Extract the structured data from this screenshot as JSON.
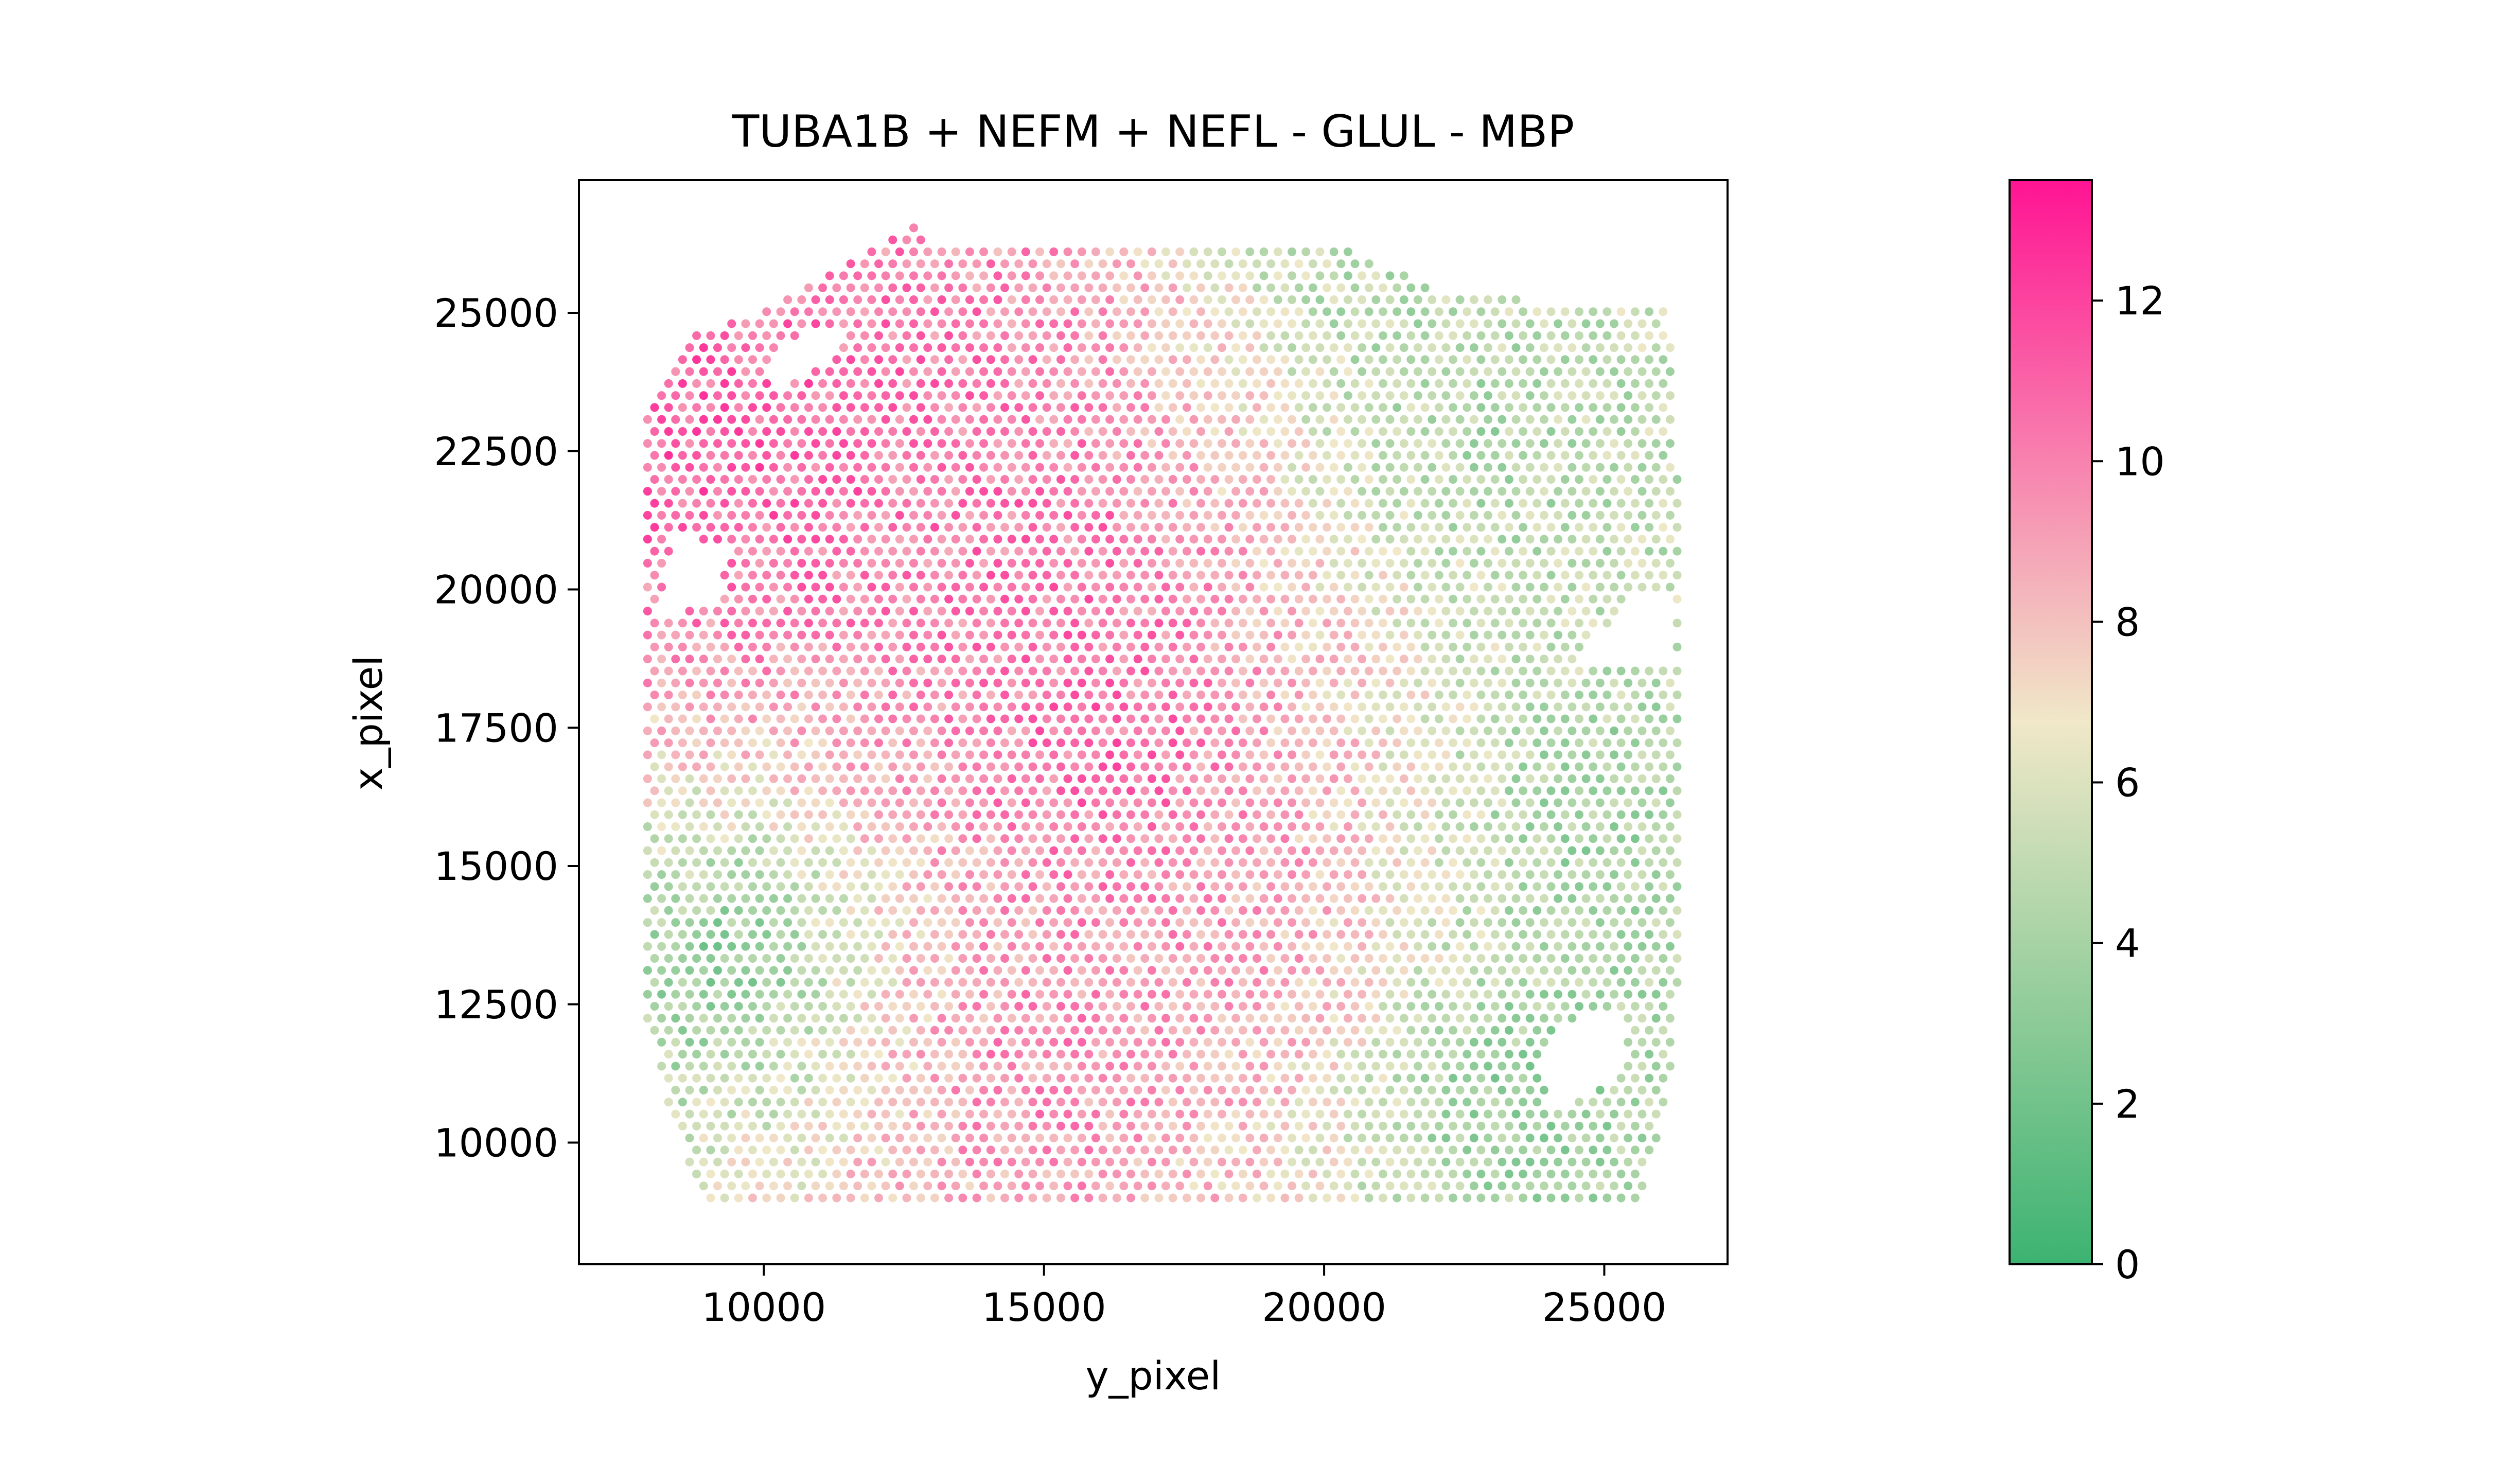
{
  "chart_data": {
    "type": "scatter",
    "title": "TUBA1B + NEFM + NEFL - GLUL - MBP",
    "xlabel": "y_pixel",
    "ylabel": "x_pixel",
    "xlim": [
      6700,
      27200
    ],
    "ylim": [
      27400,
      7800
    ],
    "y_inverted": true,
    "xticks": [
      10000,
      15000,
      20000,
      25000
    ],
    "yticks": [
      10000,
      12500,
      15000,
      17500,
      20000,
      22500,
      25000
    ],
    "xtick_labels": [
      "10000",
      "15000",
      "20000",
      "25000"
    ],
    "ytick_labels": [
      "10000",
      "12500",
      "15000",
      "17500",
      "20000",
      "22500",
      "25000"
    ],
    "grid": false,
    "spot_spacing": 250,
    "colorbar": {
      "range": [
        0,
        13.5
      ],
      "ticks": [
        0,
        2,
        4,
        6,
        8,
        10,
        12
      ],
      "tick_labels": [
        "0",
        "2",
        "4",
        "6",
        "8",
        "10",
        "12"
      ],
      "colors": [
        "#3cb371",
        "#f0e8c8",
        "#ff1493"
      ],
      "stops": [
        0,
        0.5,
        1
      ]
    },
    "field": {
      "description_values_in_data_units": true,
      "center_hotspots": [
        {
          "x": 16200,
          "y": 17000,
          "value": 12.5
        },
        {
          "x": 14800,
          "y": 11500,
          "value": 11.0
        },
        {
          "x": 15600,
          "y": 20500,
          "value": 11.5
        },
        {
          "x": 10800,
          "y": 22800,
          "value": 11.5
        },
        {
          "x": 8600,
          "y": 22300,
          "value": 12.0
        },
        {
          "x": 13600,
          "y": 24000,
          "value": 10.5
        },
        {
          "x": 18800,
          "y": 13500,
          "value": 10.0
        }
      ],
      "low_regions": [
        {
          "x": 9500,
          "y": 13500,
          "value": 0.5
        },
        {
          "x": 23000,
          "y": 11000,
          "value": 1.5
        },
        {
          "x": 24500,
          "y": 16000,
          "value": 2.5
        },
        {
          "x": 22500,
          "y": 22500,
          "value": 3.0
        },
        {
          "x": 20500,
          "y": 25800,
          "value": 3.5
        }
      ]
    }
  }
}
